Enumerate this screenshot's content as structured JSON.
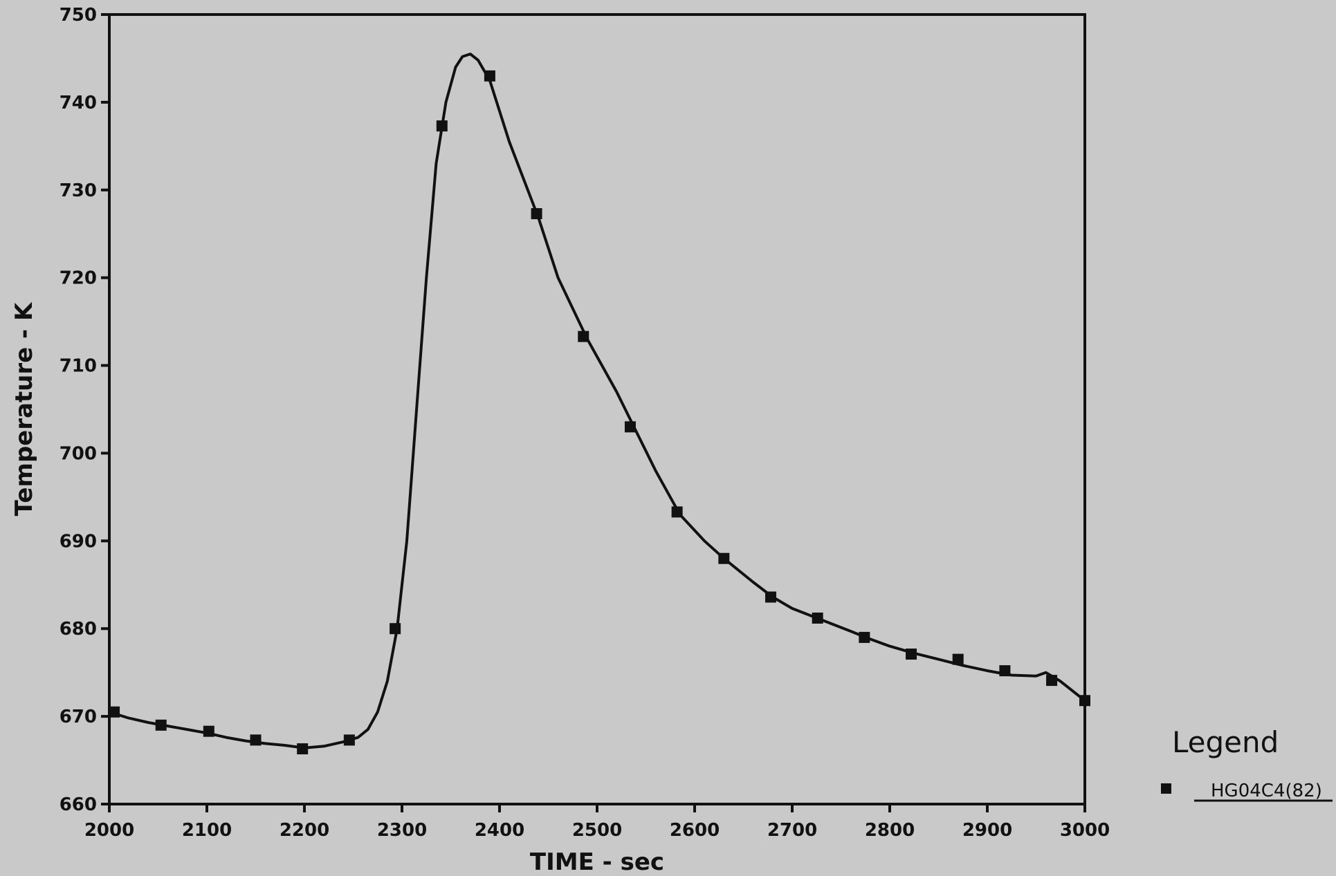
{
  "chart_data": {
    "type": "line",
    "xlabel": "TIME - sec",
    "ylabel": "Temperature - K",
    "xlim": [
      2000,
      3000
    ],
    "ylim": [
      660,
      750
    ],
    "xticks": [
      2000,
      2100,
      2200,
      2300,
      2400,
      2500,
      2600,
      2700,
      2800,
      2900,
      3000
    ],
    "yticks": [
      660,
      670,
      680,
      690,
      700,
      710,
      720,
      730,
      740,
      750
    ],
    "grid": false,
    "legend": {
      "title": "Legend",
      "position": "bottom-right-outside"
    },
    "series": [
      {
        "name": "HG04C4(82)",
        "marker": "square",
        "color": "#111111",
        "x": [
          2000,
          2020,
          2040,
          2060,
          2080,
          2100,
          2120,
          2140,
          2160,
          2180,
          2200,
          2220,
          2240,
          2255,
          2265,
          2275,
          2285,
          2295,
          2305,
          2315,
          2325,
          2335,
          2345,
          2355,
          2362,
          2370,
          2378,
          2390,
          2410,
          2440,
          2460,
          2490,
          2520,
          2540,
          2560,
          2585,
          2610,
          2630,
          2660,
          2680,
          2700,
          2730,
          2760,
          2780,
          2800,
          2825,
          2850,
          2875,
          2900,
          2925,
          2950,
          2960,
          2975,
          3000
        ],
        "y": [
          670.5,
          669.8,
          669.3,
          668.9,
          668.5,
          668.1,
          667.6,
          667.2,
          666.9,
          666.7,
          666.4,
          666.6,
          667.1,
          667.6,
          668.5,
          670.5,
          674.0,
          680.0,
          690.0,
          705.0,
          720.0,
          733.0,
          740.0,
          744.0,
          745.2,
          745.5,
          744.8,
          742.5,
          735.5,
          726.8,
          720.0,
          713.0,
          707.0,
          702.5,
          698.0,
          693.0,
          690.0,
          688.0,
          685.3,
          683.6,
          682.3,
          681.0,
          679.7,
          678.8,
          678.0,
          677.2,
          676.5,
          675.8,
          675.2,
          674.7,
          674.6,
          675.0,
          674.0,
          671.8
        ],
        "marker_x": [
          2005,
          2053,
          2102,
          2150,
          2198,
          2246,
          2293,
          2341,
          2390,
          2438,
          2486,
          2534,
          2582,
          2630,
          2678,
          2726,
          2774,
          2822,
          2870,
          2918,
          2966,
          3000
        ],
        "marker_y": [
          670.5,
          669.0,
          668.3,
          667.3,
          666.3,
          667.3,
          680.0,
          737.3,
          743.0,
          727.3,
          713.3,
          703.0,
          693.3,
          688.0,
          683.6,
          681.2,
          679.0,
          677.1,
          676.5,
          675.2,
          674.1,
          671.8
        ]
      }
    ]
  }
}
